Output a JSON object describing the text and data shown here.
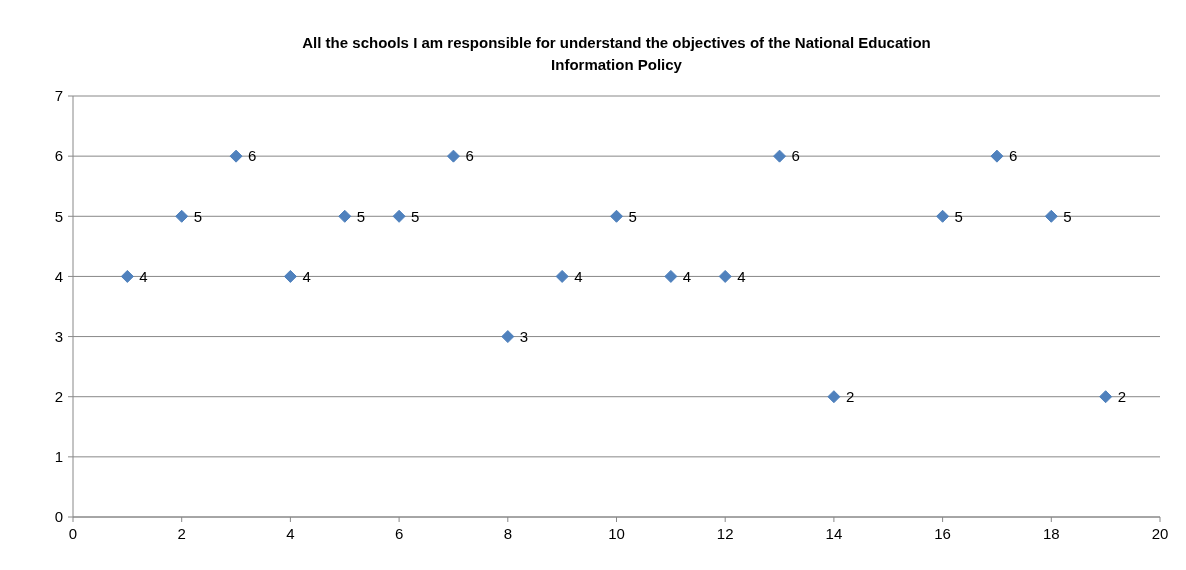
{
  "chart_data": {
    "type": "scatter",
    "title": "All the schools I am responsible for understand the objectives of the National Education Information Policy",
    "x": [
      1,
      2,
      3,
      4,
      5,
      6,
      7,
      8,
      9,
      10,
      11,
      12,
      13,
      14,
      16,
      17,
      18,
      19
    ],
    "series": [
      {
        "color": "#4f81bd",
        "values": [
          4,
          5,
          6,
          4,
          5,
          5,
          6,
          3,
          4,
          5,
          4,
          4,
          6,
          2,
          5,
          6,
          5,
          2
        ]
      }
    ],
    "xlim": [
      0,
      20
    ],
    "xticks": [
      0,
      2,
      4,
      6,
      8,
      10,
      12,
      14,
      16,
      18,
      20
    ],
    "ylim": [
      0,
      7
    ],
    "yticks": [
      0,
      1,
      2,
      3,
      4,
      5,
      6,
      7
    ],
    "grid": "y",
    "marker": "diamond",
    "data_labels": true
  }
}
